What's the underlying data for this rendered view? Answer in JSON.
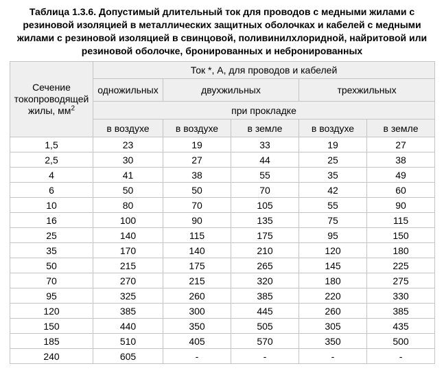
{
  "title": "Таблица 1.3.6. Допустимый длительный ток для проводов с медными жилами с резиновой изоляцией в металлических защитных оболочках и кабелей с медными жилами с резиновой изоляцией в свинцовой, поливинилхлоридной, найритовой или резиновой оболочке, бронированных и небронированных",
  "table": {
    "col1_header_text": "Сечение токопроводящей жилы, мм",
    "col1_header_sup": "2",
    "top_header": "Ток *, А, для проводов и кабелей",
    "groups": {
      "single_core": "одножильных",
      "two_core": "двухжильных",
      "three_core": "трехжильных"
    },
    "laying_header": "при прокладке",
    "sub_headers": [
      "в воздухе",
      "в воздухе",
      "в земле",
      "в воздухе",
      "в земле"
    ],
    "rows": [
      [
        "1,5",
        "23",
        "19",
        "33",
        "19",
        "27"
      ],
      [
        "2,5",
        "30",
        "27",
        "44",
        "25",
        "38"
      ],
      [
        "4",
        "41",
        "38",
        "55",
        "35",
        "49"
      ],
      [
        "6",
        "50",
        "50",
        "70",
        "42",
        "60"
      ],
      [
        "10",
        "80",
        "70",
        "105",
        "55",
        "90"
      ],
      [
        "16",
        "100",
        "90",
        "135",
        "75",
        "115"
      ],
      [
        "25",
        "140",
        "115",
        "175",
        "95",
        "150"
      ],
      [
        "35",
        "170",
        "140",
        "210",
        "120",
        "180"
      ],
      [
        "50",
        "215",
        "175",
        "265",
        "145",
        "225"
      ],
      [
        "70",
        "270",
        "215",
        "320",
        "180",
        "275"
      ],
      [
        "95",
        "325",
        "260",
        "385",
        "220",
        "330"
      ],
      [
        "120",
        "385",
        "300",
        "445",
        "260",
        "385"
      ],
      [
        "150",
        "440",
        "350",
        "505",
        "305",
        "435"
      ],
      [
        "185",
        "510",
        "405",
        "570",
        "350",
        "500"
      ],
      [
        "240",
        "605",
        "-",
        "-",
        "-",
        "-"
      ]
    ]
  },
  "colors": {
    "header_bg": "#efefef",
    "border": "#c3c3c3",
    "text": "#000000"
  }
}
